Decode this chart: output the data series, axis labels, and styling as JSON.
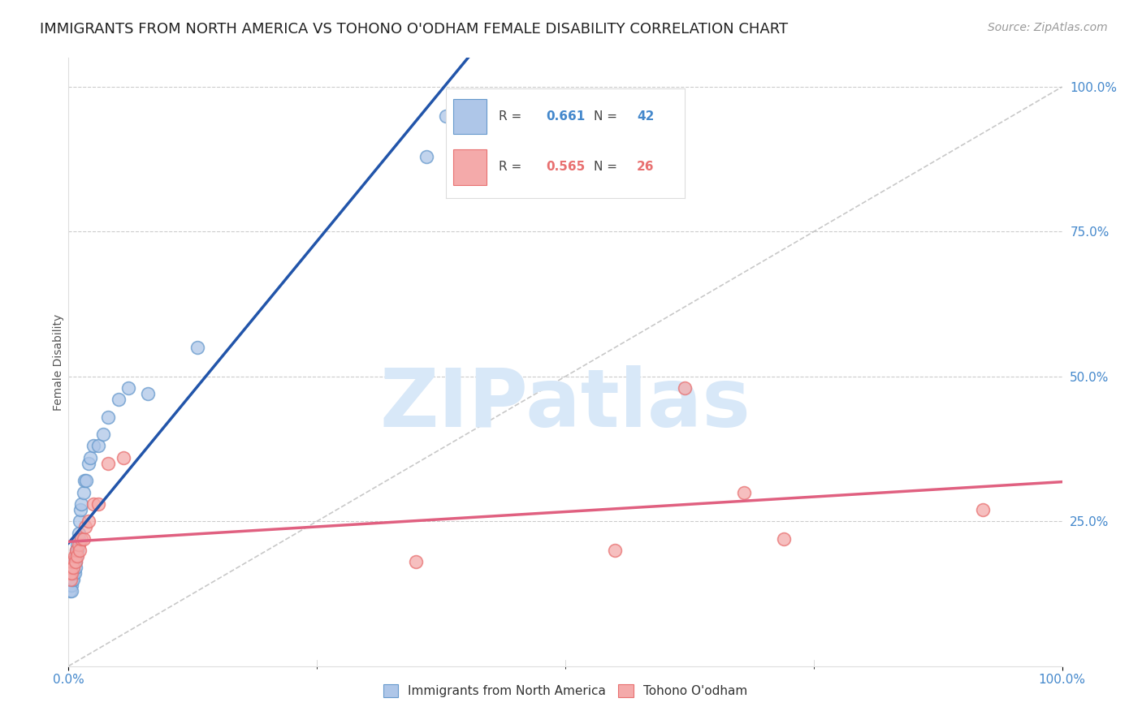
{
  "title": "IMMIGRANTS FROM NORTH AMERICA VS TOHONO O'ODHAM FEMALE DISABILITY CORRELATION CHART",
  "source": "Source: ZipAtlas.com",
  "ylabel": "Female Disability",
  "legend_label1": "Immigrants from North America",
  "legend_label2": "Tohono O'odham",
  "R1": "0.661",
  "N1": "42",
  "R2": "0.565",
  "N2": "26",
  "blue_color": "#AEC6E8",
  "pink_color": "#F4AAAA",
  "blue_edge_color": "#6699CC",
  "pink_edge_color": "#E87070",
  "blue_line_color": "#2255AA",
  "pink_line_color": "#E06080",
  "diag_color": "#BBBBBB",
  "watermark_text": "ZIPatlas",
  "watermark_color": "#D8E8F8",
  "blue_x": [
    0.001,
    0.001,
    0.002,
    0.002,
    0.002,
    0.003,
    0.003,
    0.003,
    0.004,
    0.004,
    0.004,
    0.005,
    0.005,
    0.005,
    0.006,
    0.006,
    0.007,
    0.007,
    0.008,
    0.008,
    0.009,
    0.009,
    0.01,
    0.01,
    0.011,
    0.012,
    0.013,
    0.015,
    0.016,
    0.018,
    0.02,
    0.022,
    0.025,
    0.03,
    0.035,
    0.04,
    0.05,
    0.06,
    0.08,
    0.13,
    0.36,
    0.38
  ],
  "blue_y": [
    0.14,
    0.13,
    0.16,
    0.15,
    0.17,
    0.14,
    0.13,
    0.16,
    0.15,
    0.16,
    0.18,
    0.15,
    0.17,
    0.16,
    0.18,
    0.16,
    0.18,
    0.17,
    0.19,
    0.2,
    0.2,
    0.21,
    0.22,
    0.23,
    0.25,
    0.27,
    0.28,
    0.3,
    0.32,
    0.32,
    0.35,
    0.36,
    0.38,
    0.38,
    0.4,
    0.43,
    0.46,
    0.48,
    0.47,
    0.55,
    0.88,
    0.95
  ],
  "pink_x": [
    0.001,
    0.002,
    0.002,
    0.003,
    0.004,
    0.005,
    0.006,
    0.007,
    0.008,
    0.009,
    0.01,
    0.011,
    0.013,
    0.015,
    0.017,
    0.02,
    0.025,
    0.03,
    0.04,
    0.055,
    0.35,
    0.55,
    0.62,
    0.68,
    0.72,
    0.92
  ],
  "pink_y": [
    0.16,
    0.15,
    0.17,
    0.16,
    0.18,
    0.17,
    0.19,
    0.18,
    0.2,
    0.19,
    0.21,
    0.2,
    0.22,
    0.22,
    0.24,
    0.25,
    0.28,
    0.28,
    0.35,
    0.36,
    0.18,
    0.2,
    0.48,
    0.3,
    0.22,
    0.27
  ],
  "xlim": [
    0.0,
    1.0
  ],
  "ylim": [
    0.0,
    1.05
  ],
  "x_right_label": "100.0%",
  "x_left_label": "0.0%",
  "ytick_vals": [
    0.25,
    0.5,
    0.75,
    1.0
  ],
  "ytick_labels": [
    "25.0%",
    "50.0%",
    "75.0%",
    "100.0%"
  ],
  "background_color": "#FFFFFF",
  "grid_color": "#CCCCCC",
  "title_fontsize": 13,
  "axis_label_fontsize": 10,
  "tick_fontsize": 11,
  "source_fontsize": 10,
  "tick_color": "#4488CC"
}
